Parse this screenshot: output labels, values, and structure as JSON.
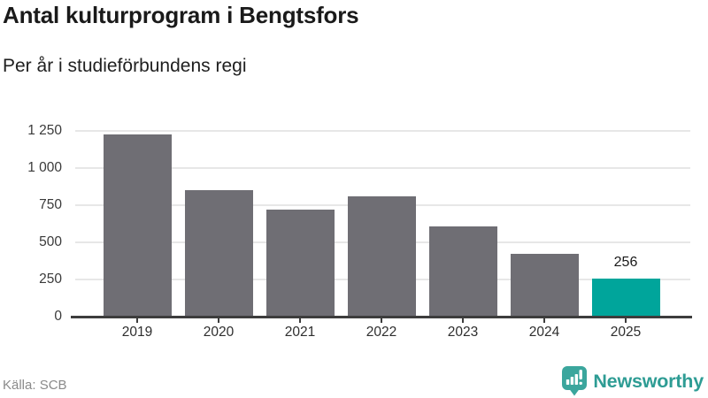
{
  "header": {
    "title": "Antal kulturprogram i Bengtsfors",
    "subtitle": "Per år i studieförbundens regi"
  },
  "chart_data": {
    "type": "bar",
    "categories": [
      "2019",
      "2020",
      "2021",
      "2022",
      "2023",
      "2024",
      "2025"
    ],
    "values": [
      1225,
      850,
      720,
      810,
      610,
      420,
      256
    ],
    "title": "Antal kulturprogram i Bengtsfors",
    "subtitle": "Per år i studieförbundens regi",
    "xlabel": "",
    "ylabel": "",
    "ylim": [
      0,
      1250
    ],
    "yticks": [
      0,
      250,
      500,
      750,
      1000,
      1250
    ],
    "ytick_labels": [
      "0",
      "250",
      "500",
      "750",
      "1 000",
      "1 250"
    ],
    "grid": true,
    "legend": false,
    "bar_color": "#6f6e74",
    "highlight_index": 6,
    "highlight_color": "#00a59b",
    "annotations": [
      {
        "index": 6,
        "category": "2025",
        "label": "256"
      }
    ]
  },
  "footer": {
    "source": "Källa: SCB",
    "brand": "Newsworthy",
    "brand_color": "#2e9c94",
    "icon_color": "#3ba69d",
    "icon": "newsworthy-bubble-chart-icon"
  }
}
